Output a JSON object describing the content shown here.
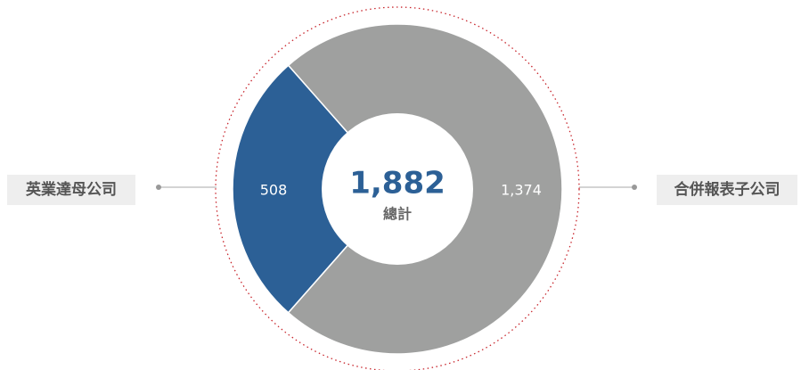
{
  "chart_data": {
    "type": "donut",
    "categories": [
      "英業達母公司",
      "合併報表子公司"
    ],
    "values": [
      508,
      1374
    ],
    "value_labels": [
      "508",
      "1,374"
    ],
    "colors": [
      "#2c6096",
      "#9fa09f"
    ],
    "center_value": {
      "value": 1882,
      "label": "1,882"
    },
    "center_text": "總計"
  }
}
